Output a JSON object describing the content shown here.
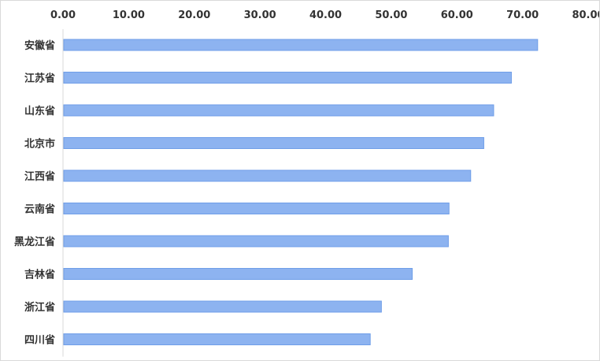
{
  "chart_data": {
    "type": "bar",
    "orientation": "horizontal",
    "categories": [
      "安徽省",
      "江苏省",
      "山东省",
      "北京市",
      "江西省",
      "云南省",
      "黑龙江省",
      "吉林省",
      "浙江省",
      "四川省"
    ],
    "values": [
      72.3,
      68.3,
      65.6,
      64.1,
      62.1,
      58.8,
      58.7,
      53.2,
      48.5,
      46.8
    ],
    "xlim": [
      0,
      80
    ],
    "xticks": [
      "0.00",
      "10.00",
      "20.00",
      "30.00",
      "40.00",
      "50.00",
      "60.00",
      "70.00",
      "80.00"
    ],
    "x_axis_position": "top",
    "grid": false,
    "legend": "none",
    "bar_color": "#8db3f0",
    "bar_edge_color": "#6f9ee8"
  }
}
